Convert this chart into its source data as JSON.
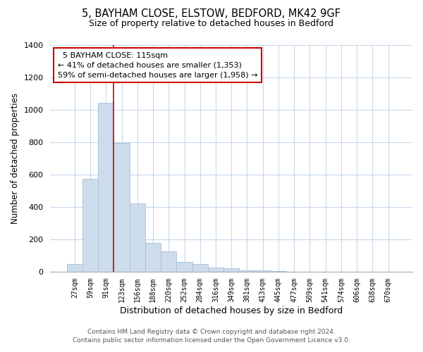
{
  "title": "5, BAYHAM CLOSE, ELSTOW, BEDFORD, MK42 9GF",
  "subtitle": "Size of property relative to detached houses in Bedford",
  "xlabel": "Distribution of detached houses by size in Bedford",
  "ylabel": "Number of detached properties",
  "bar_labels": [
    "27sqm",
    "59sqm",
    "91sqm",
    "123sqm",
    "156sqm",
    "188sqm",
    "220sqm",
    "252sqm",
    "284sqm",
    "316sqm",
    "349sqm",
    "381sqm",
    "413sqm",
    "445sqm",
    "477sqm",
    "509sqm",
    "541sqm",
    "574sqm",
    "606sqm",
    "638sqm",
    "670sqm"
  ],
  "bar_values": [
    50,
    575,
    1045,
    795,
    420,
    180,
    125,
    62,
    50,
    25,
    22,
    10,
    8,
    5,
    2,
    1,
    0,
    0,
    0,
    0,
    0
  ],
  "bar_color": "#cddcec",
  "bar_edge_color": "#a8c0d8",
  "ylim": [
    0,
    1400
  ],
  "yticks": [
    0,
    200,
    400,
    600,
    800,
    1000,
    1200,
    1400
  ],
  "property_line_color": "#cc0000",
  "annotation_title": "5 BAYHAM CLOSE: 115sqm",
  "annotation_line1": "← 41% of detached houses are smaller (1,353)",
  "annotation_line2": "59% of semi-detached houses are larger (1,958) →",
  "annotation_box_color": "#ffffff",
  "annotation_box_edge": "#cc0000",
  "footer1": "Contains HM Land Registry data © Crown copyright and database right 2024.",
  "footer2": "Contains public sector information licensed under the Open Government Licence v3.0.",
  "background_color": "#ffffff",
  "grid_color": "#c8d8ec"
}
